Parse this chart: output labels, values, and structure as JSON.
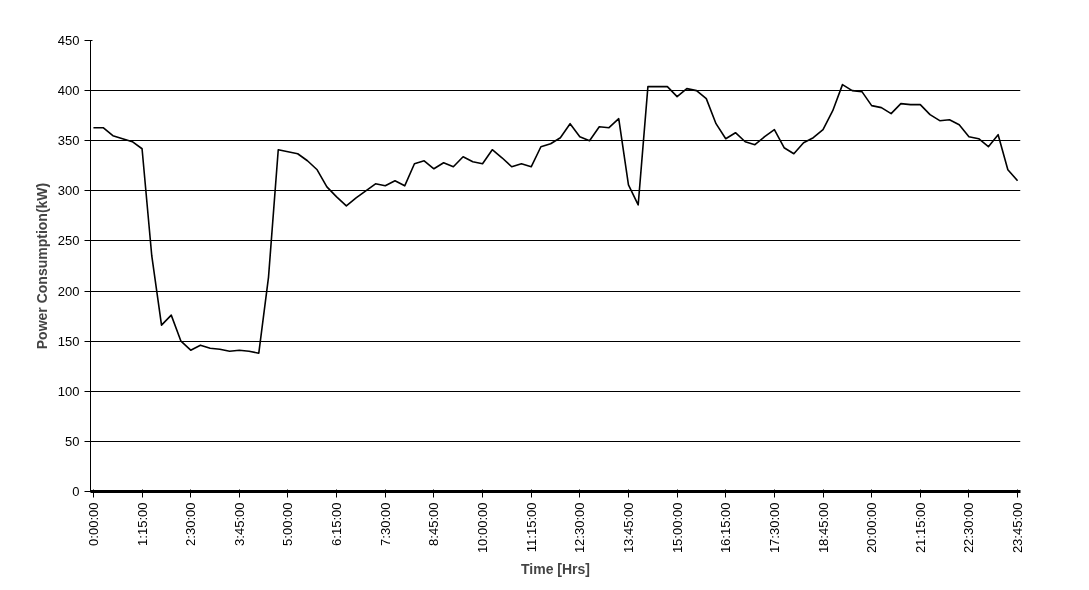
{
  "chart_data": {
    "type": "line",
    "xlabel": "Time [Hrs]",
    "ylabel": "Power Consumption(kW)",
    "categories": [
      "0:00:00",
      null,
      null,
      null,
      null,
      "1:15:00",
      null,
      null,
      null,
      null,
      "2:30:00",
      null,
      null,
      null,
      null,
      "3:45:00",
      null,
      null,
      null,
      null,
      "5:00:00",
      null,
      null,
      null,
      null,
      "6:15:00",
      null,
      null,
      null,
      null,
      "7:30:00",
      null,
      null,
      null,
      null,
      "8:45:00",
      null,
      null,
      null,
      null,
      "10:00:00",
      null,
      null,
      null,
      null,
      "11:15:00",
      null,
      null,
      null,
      null,
      "12:30:00",
      null,
      null,
      null,
      null,
      "13:45:00",
      null,
      null,
      null,
      null,
      "15:00:00",
      null,
      null,
      null,
      null,
      "16:15:00",
      null,
      null,
      null,
      null,
      "17:30:00",
      null,
      null,
      null,
      null,
      "18:45:00",
      null,
      null,
      null,
      null,
      "20:00:00",
      null,
      null,
      null,
      null,
      "21:15:00",
      null,
      null,
      null,
      null,
      "22:30:00",
      null,
      null,
      null,
      null,
      "23:45:00"
    ],
    "series": [
      {
        "color": "#000000",
        "values": [
          363,
          363,
          355,
          352,
          349,
          342,
          235,
          166,
          176,
          150,
          141,
          146,
          143,
          142,
          140,
          141,
          140,
          138,
          214,
          341,
          339,
          337,
          330,
          321,
          304,
          294,
          285,
          293,
          300,
          307,
          305,
          310,
          305,
          327,
          330,
          322,
          328,
          324,
          334,
          329,
          327,
          341,
          333,
          324,
          327,
          324,
          344,
          347,
          353,
          367,
          354,
          350,
          364,
          363,
          372,
          306,
          286,
          404,
          404,
          404,
          394,
          402,
          400,
          392,
          367,
          352,
          358,
          349,
          346,
          354,
          361,
          343,
          337,
          348,
          353,
          361,
          380,
          406,
          400,
          399,
          385,
          383,
          377,
          387,
          386,
          386,
          376,
          370,
          371,
          366,
          354,
          352,
          344,
          356,
          321,
          310
        ]
      }
    ],
    "ylim": [
      0,
      450
    ],
    "yticks": [
      0,
      50,
      100,
      150,
      200,
      250,
      300,
      350,
      400,
      450
    ],
    "grid": "y",
    "marker": "none",
    "line_style": "solid"
  }
}
